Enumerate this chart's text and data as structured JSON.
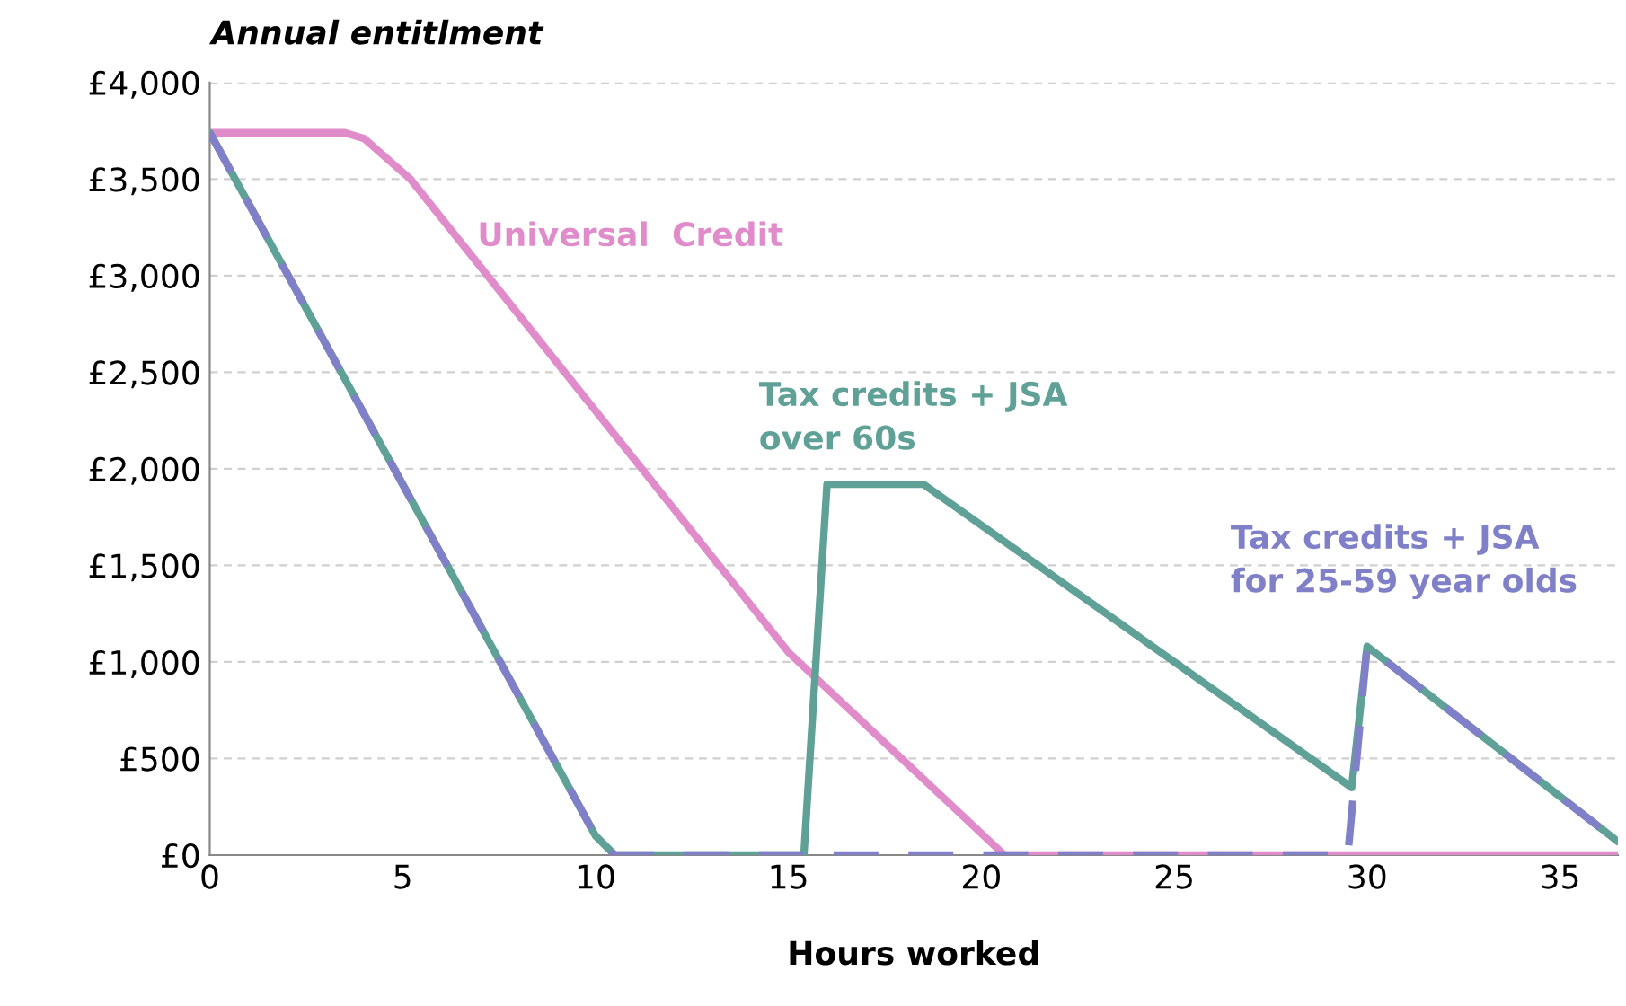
{
  "chart_data": {
    "type": "line",
    "ylabel": "Annual entitlment",
    "xlabel": "Hours worked",
    "xlim": [
      0,
      36.5
    ],
    "xticks": [
      0,
      5,
      10,
      15,
      20,
      25,
      30,
      35
    ],
    "ylim": [
      0,
      4000
    ],
    "yticks": [
      {
        "value": 0,
        "label": "£0"
      },
      {
        "value": 500,
        "label": "£500"
      },
      {
        "value": 1000,
        "label": "£1,000"
      },
      {
        "value": 1500,
        "label": "£1,500"
      },
      {
        "value": 2000,
        "label": "£2,000"
      },
      {
        "value": 2500,
        "label": "£2,500"
      },
      {
        "value": 3000,
        "label": "£3,000"
      },
      {
        "value": 3500,
        "label": "£3,500"
      },
      {
        "value": 4000,
        "label": "£4,000"
      }
    ],
    "grid": "y",
    "legend": false,
    "marker": "none",
    "series": [
      {
        "name": "Universal  Credit",
        "color": "#e08ccb",
        "line_style": "solid",
        "x": [
          0,
          3.5,
          4,
          5.2,
          10,
          15,
          20.6,
          36.5
        ],
        "values": [
          3740,
          3740,
          3710,
          3500,
          2300,
          1050,
          0,
          0
        ]
      },
      {
        "name": "Tax credits + JSA\nover 60s",
        "color": "#5fa197",
        "line_style": "solid",
        "x": [
          0,
          10,
          10.5,
          15.4,
          16,
          18.5,
          29.6,
          30,
          36.5
        ],
        "values": [
          3740,
          100,
          0,
          0,
          1920,
          1920,
          350,
          1080,
          70
        ]
      },
      {
        "name": "Tax credits + JSA\nfor 25-59 year olds",
        "color": "#8080c8",
        "line_style": "dashed",
        "x": [
          0,
          10,
          10.5,
          29.5,
          30,
          36.5
        ],
        "values": [
          3740,
          100,
          0,
          0,
          1080,
          70
        ]
      }
    ]
  }
}
